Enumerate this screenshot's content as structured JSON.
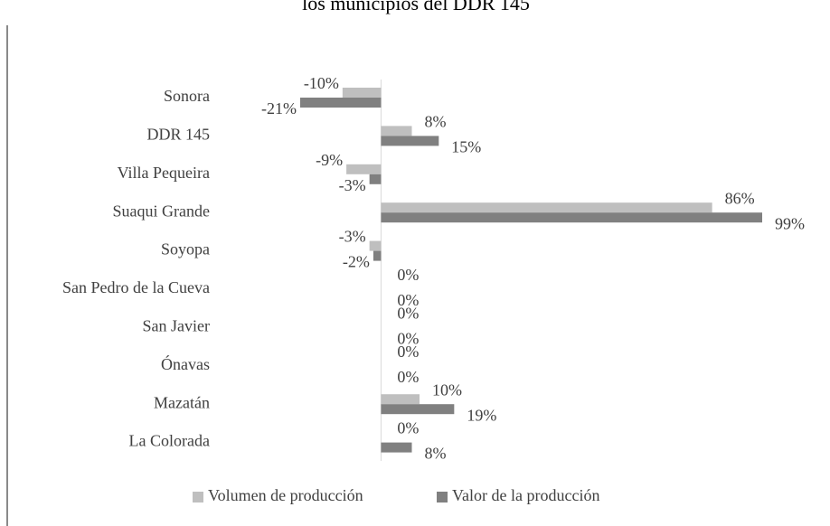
{
  "chart_data": {
    "type": "hbar",
    "title": "los municipios del DDR 145",
    "categories": [
      "Sonora",
      "DDR 145",
      "Villa Pequeira",
      "Suaqui Grande",
      "Soyopa",
      "San Pedro de la Cueva",
      "San Javier",
      "Ónavas",
      "Mazatán",
      "La Colorada"
    ],
    "series": [
      {
        "name": "Volumen de producción",
        "color": "#bfbfbf",
        "values": [
          -10,
          8,
          -9,
          86,
          -3,
          0,
          0,
          0,
          10,
          0
        ],
        "value_labels": [
          "-10%",
          "8%",
          "-9%",
          "86%",
          "-3%",
          "0%",
          "0%",
          "0%",
          "10%",
          "0%"
        ]
      },
      {
        "name": "Valor de la producción",
        "color": "#808080",
        "values": [
          -21,
          15,
          -3,
          99,
          -2,
          0,
          0,
          0,
          19,
          8
        ],
        "value_labels": [
          "-21%",
          "15%",
          "-3%",
          "99%",
          "-2%",
          "0%",
          "0%",
          "0%",
          "19%",
          "8%"
        ]
      }
    ],
    "legend": "bottom"
  }
}
